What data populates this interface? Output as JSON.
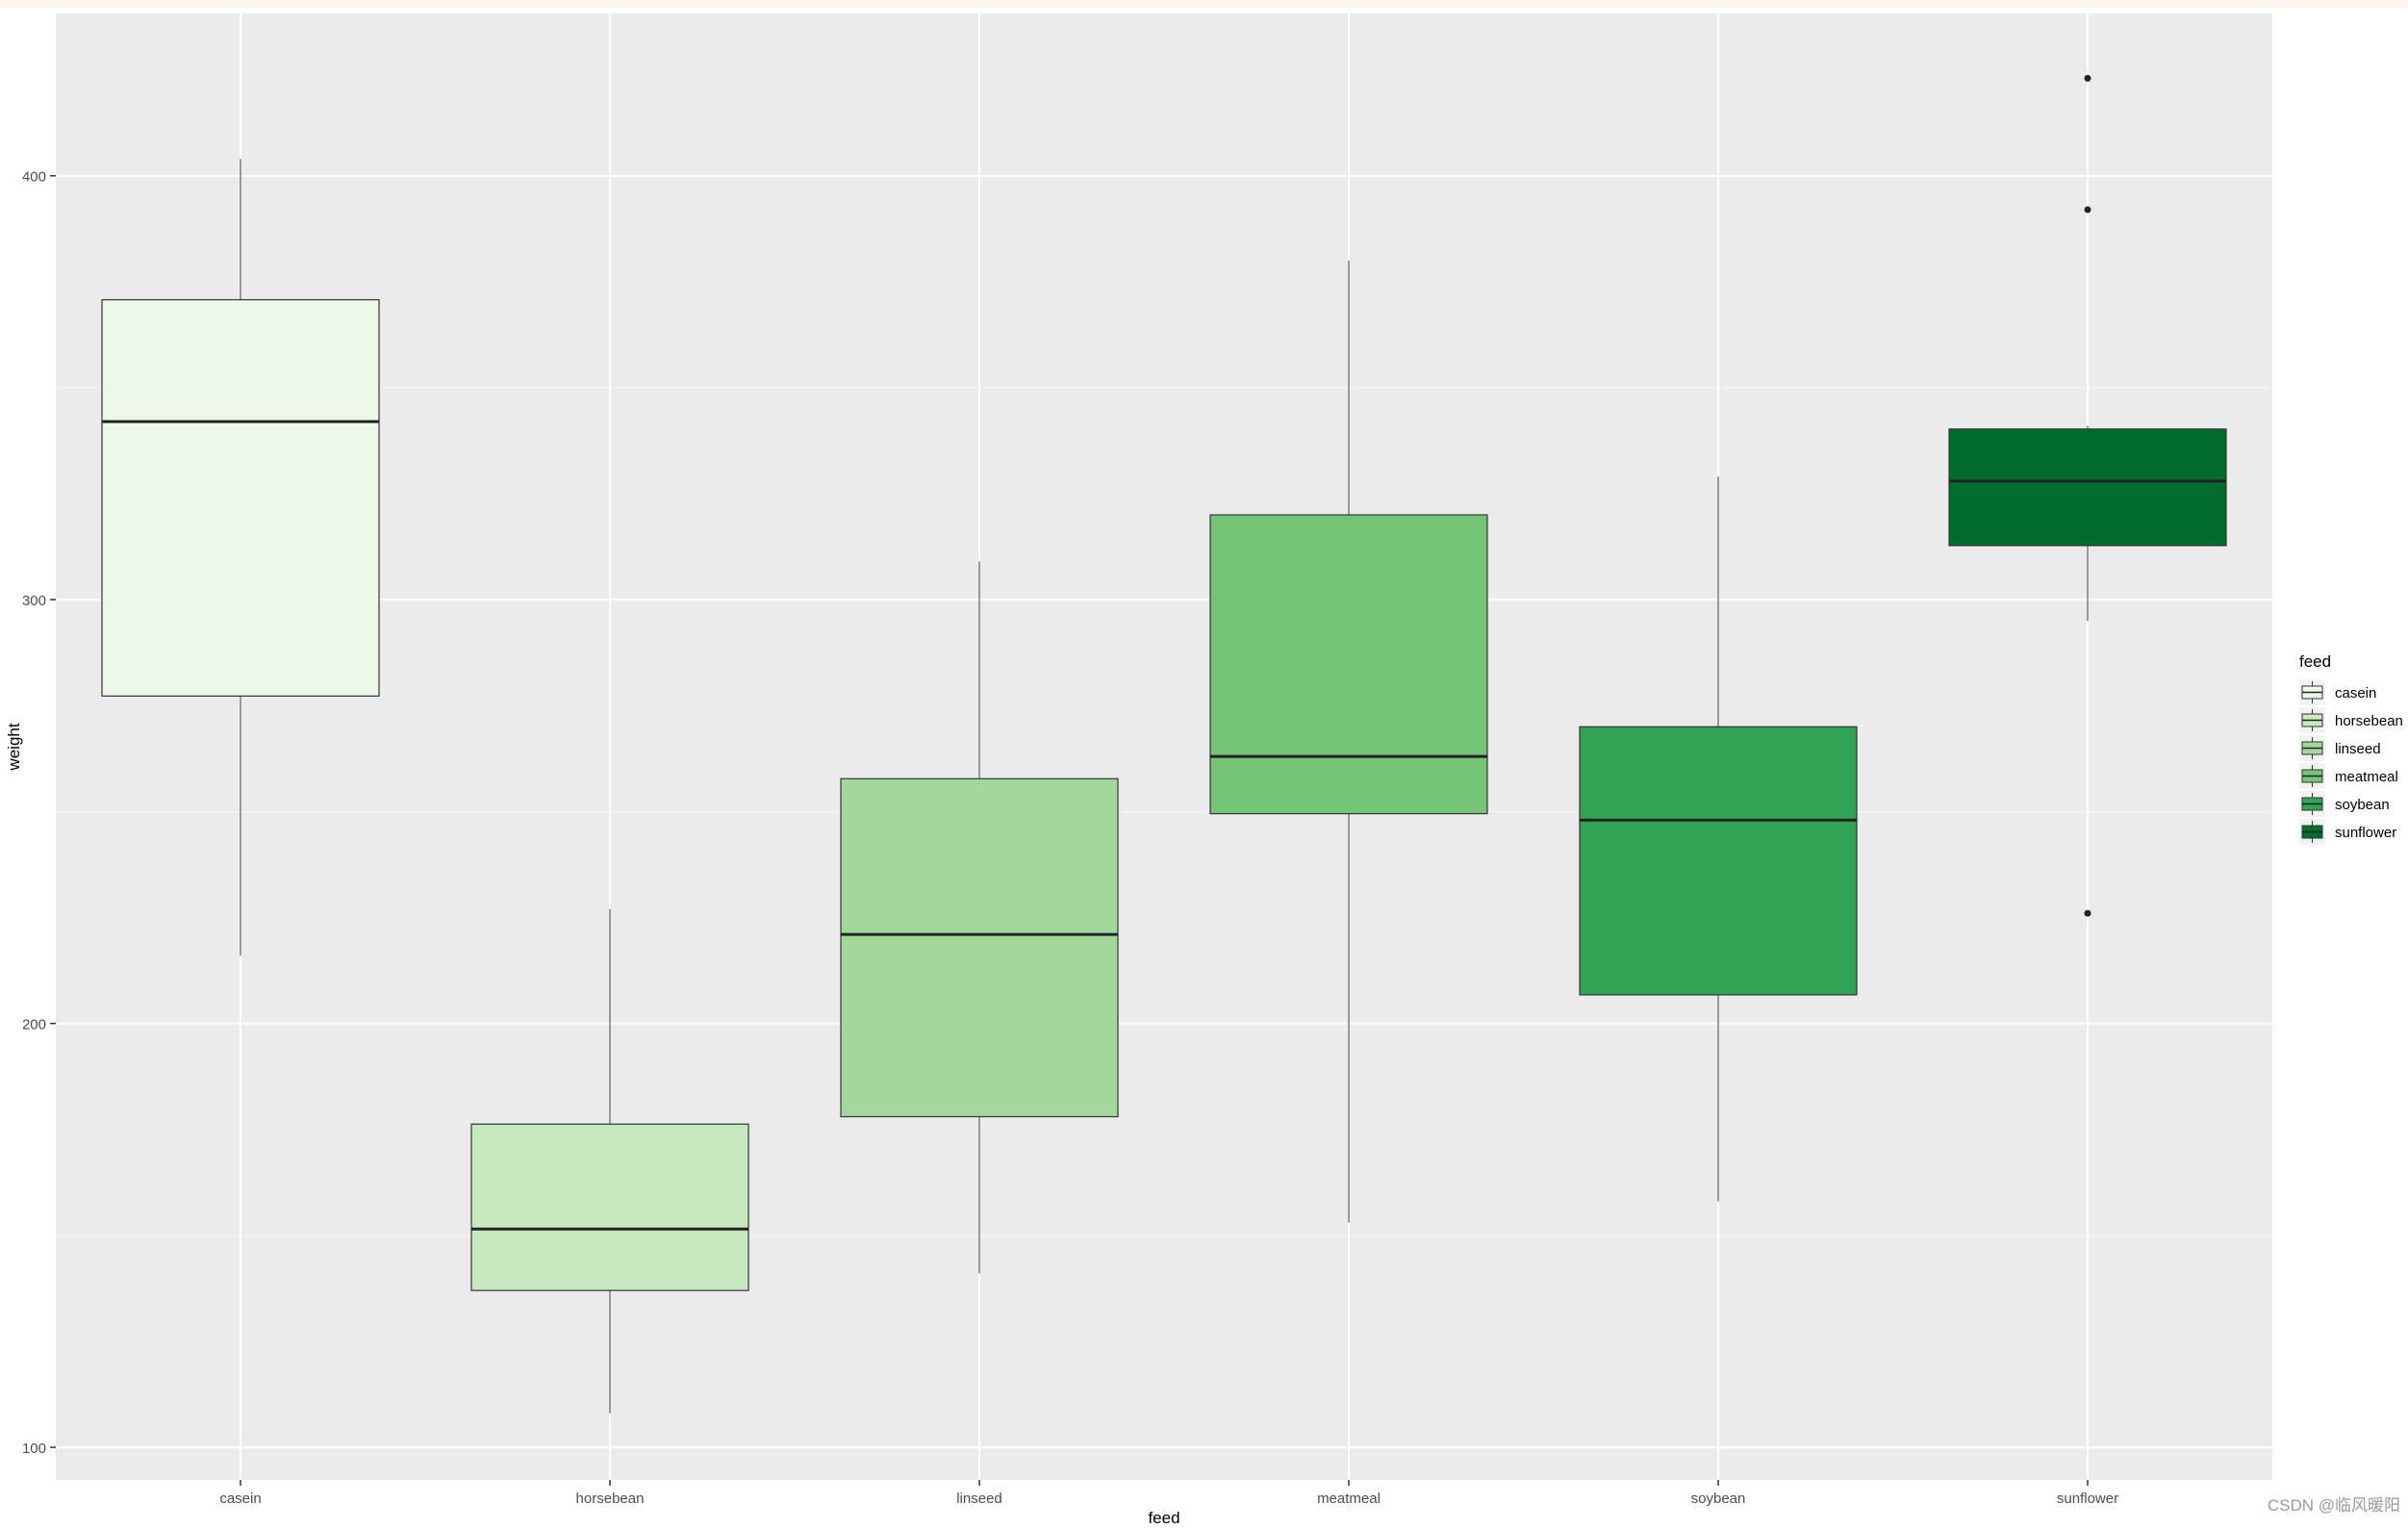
{
  "chart_data": {
    "type": "boxplot",
    "title": "",
    "xlabel": "feed",
    "ylabel": "weight",
    "ylim": [
      92.3,
      438.3
    ],
    "yticks": [
      100,
      200,
      300,
      400
    ],
    "grid": true,
    "legend_position": "right",
    "legend_title": "feed",
    "categories": [
      "casein",
      "horsebean",
      "linseed",
      "meatmeal",
      "soybean",
      "sunflower"
    ],
    "colors": {
      "casein": "#edf8e9",
      "horsebean": "#c7e9c0",
      "linseed": "#a1d99b",
      "meatmeal": "#74c476",
      "soybean": "#31a354",
      "sunflower": "#006d2c"
    },
    "boxes": [
      {
        "feed": "casein",
        "min": 216,
        "q1": 277.25,
        "median": 342,
        "q3": 370.75,
        "max": 404,
        "outliers": []
      },
      {
        "feed": "horsebean",
        "min": 108,
        "q1": 137,
        "median": 151.5,
        "q3": 176.25,
        "max": 227,
        "outliers": []
      },
      {
        "feed": "linseed",
        "min": 141,
        "q1": 178,
        "median": 221,
        "q3": 257.75,
        "max": 309,
        "outliers": []
      },
      {
        "feed": "meatmeal",
        "min": 153,
        "q1": 249.5,
        "median": 263,
        "q3": 320,
        "max": 380,
        "outliers": []
      },
      {
        "feed": "soybean",
        "min": 158,
        "q1": 206.75,
        "median": 248,
        "q3": 270,
        "max": 329,
        "outliers": []
      },
      {
        "feed": "sunflower",
        "min": 295,
        "q1": 312.75,
        "median": 328,
        "q3": 340.25,
        "max": 341,
        "outliers": [
          226,
          392,
          423
        ]
      }
    ]
  },
  "watermark": "CSDN @临风暖阳"
}
